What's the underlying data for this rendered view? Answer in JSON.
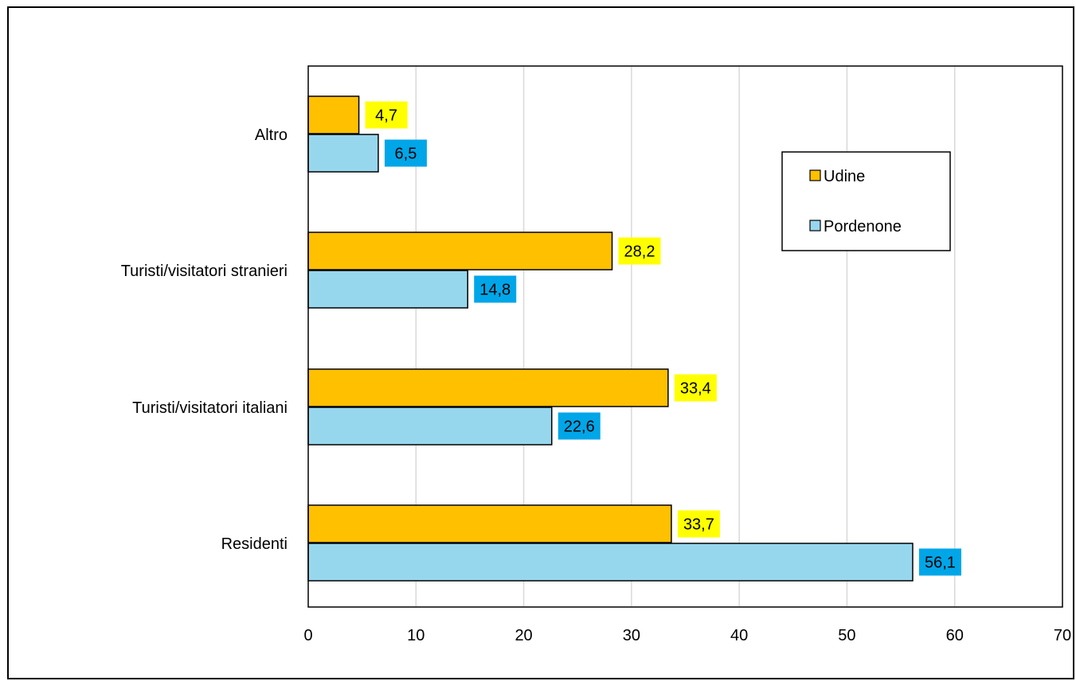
{
  "chart_data": {
    "type": "bar",
    "orientation": "horizontal",
    "title": "",
    "xlabel": "",
    "ylabel": "",
    "categories": [
      "Altro",
      "Turisti/visitatori stranieri",
      "Turisti/visitatori italiani",
      "Residenti"
    ],
    "series": [
      {
        "name": "Udine",
        "values": [
          4.7,
          28.2,
          33.4,
          33.7
        ],
        "value_labels": [
          "4,7",
          "28,2",
          "33,4",
          "33,7"
        ],
        "color": "#FFC000",
        "label_bg": "#FFFF00"
      },
      {
        "name": "Pordenone",
        "values": [
          6.5,
          14.8,
          22.6,
          56.1
        ],
        "value_labels": [
          "6,5",
          "14,8",
          "22,6",
          "56,1"
        ],
        "color": "#97D7EE",
        "label_bg": "#00A6E8"
      }
    ],
    "xlim": [
      0,
      70
    ],
    "xticks": [
      "0",
      "10",
      "20",
      "30",
      "40",
      "50",
      "60",
      "70"
    ],
    "grid": "vertical",
    "legend_position": "top-right"
  }
}
